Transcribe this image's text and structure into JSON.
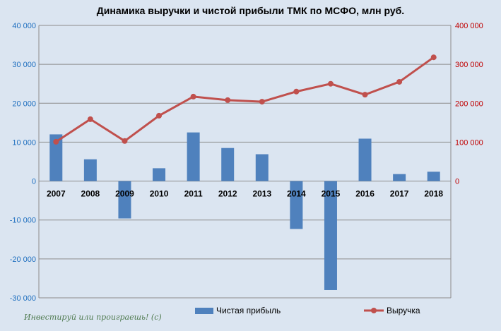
{
  "chart_data": {
    "type": "bar+line",
    "title": "Динамика выручки и чистой прибыли ТМК по МСФО, млн руб.",
    "categories": [
      "2007",
      "2008",
      "2009",
      "2010",
      "2011",
      "2012",
      "2013",
      "2014",
      "2015",
      "2016",
      "2017",
      "2018"
    ],
    "series": [
      {
        "name": "Чистая прибыль",
        "type": "bar",
        "axis": "left",
        "color": "#4f81bd",
        "values": [
          12000,
          5600,
          -9600,
          3300,
          12500,
          8500,
          6900,
          -12300,
          -28000,
          10900,
          1800,
          2400
        ]
      },
      {
        "name": "Выручка",
        "type": "line",
        "axis": "right",
        "color": "#c0504d",
        "values": [
          101000,
          159000,
          103000,
          168000,
          217000,
          208000,
          204000,
          230000,
          250000,
          222000,
          255000,
          318000
        ]
      }
    ],
    "left_axis": {
      "ylim": [
        -30000,
        40000
      ],
      "ticks": [
        "-30 000",
        "-20 000",
        "-10 000",
        "0",
        "10 000",
        "20 000",
        "30 000",
        "40 000"
      ],
      "tick_values": [
        -30000,
        -20000,
        -10000,
        0,
        10000,
        20000,
        30000,
        40000
      ],
      "color": "#1f6fbf"
    },
    "right_axis": {
      "ylim": [
        0,
        400000
      ],
      "ticks": [
        "0",
        "100 000",
        "200 000",
        "300 000",
        "400 000"
      ],
      "tick_values": [
        0,
        100000,
        200000,
        300000,
        400000
      ],
      "color": "#c00000"
    },
    "grid": true,
    "legend_position": "bottom"
  },
  "watermark": "Инвестируй или проиграешь! (с)"
}
